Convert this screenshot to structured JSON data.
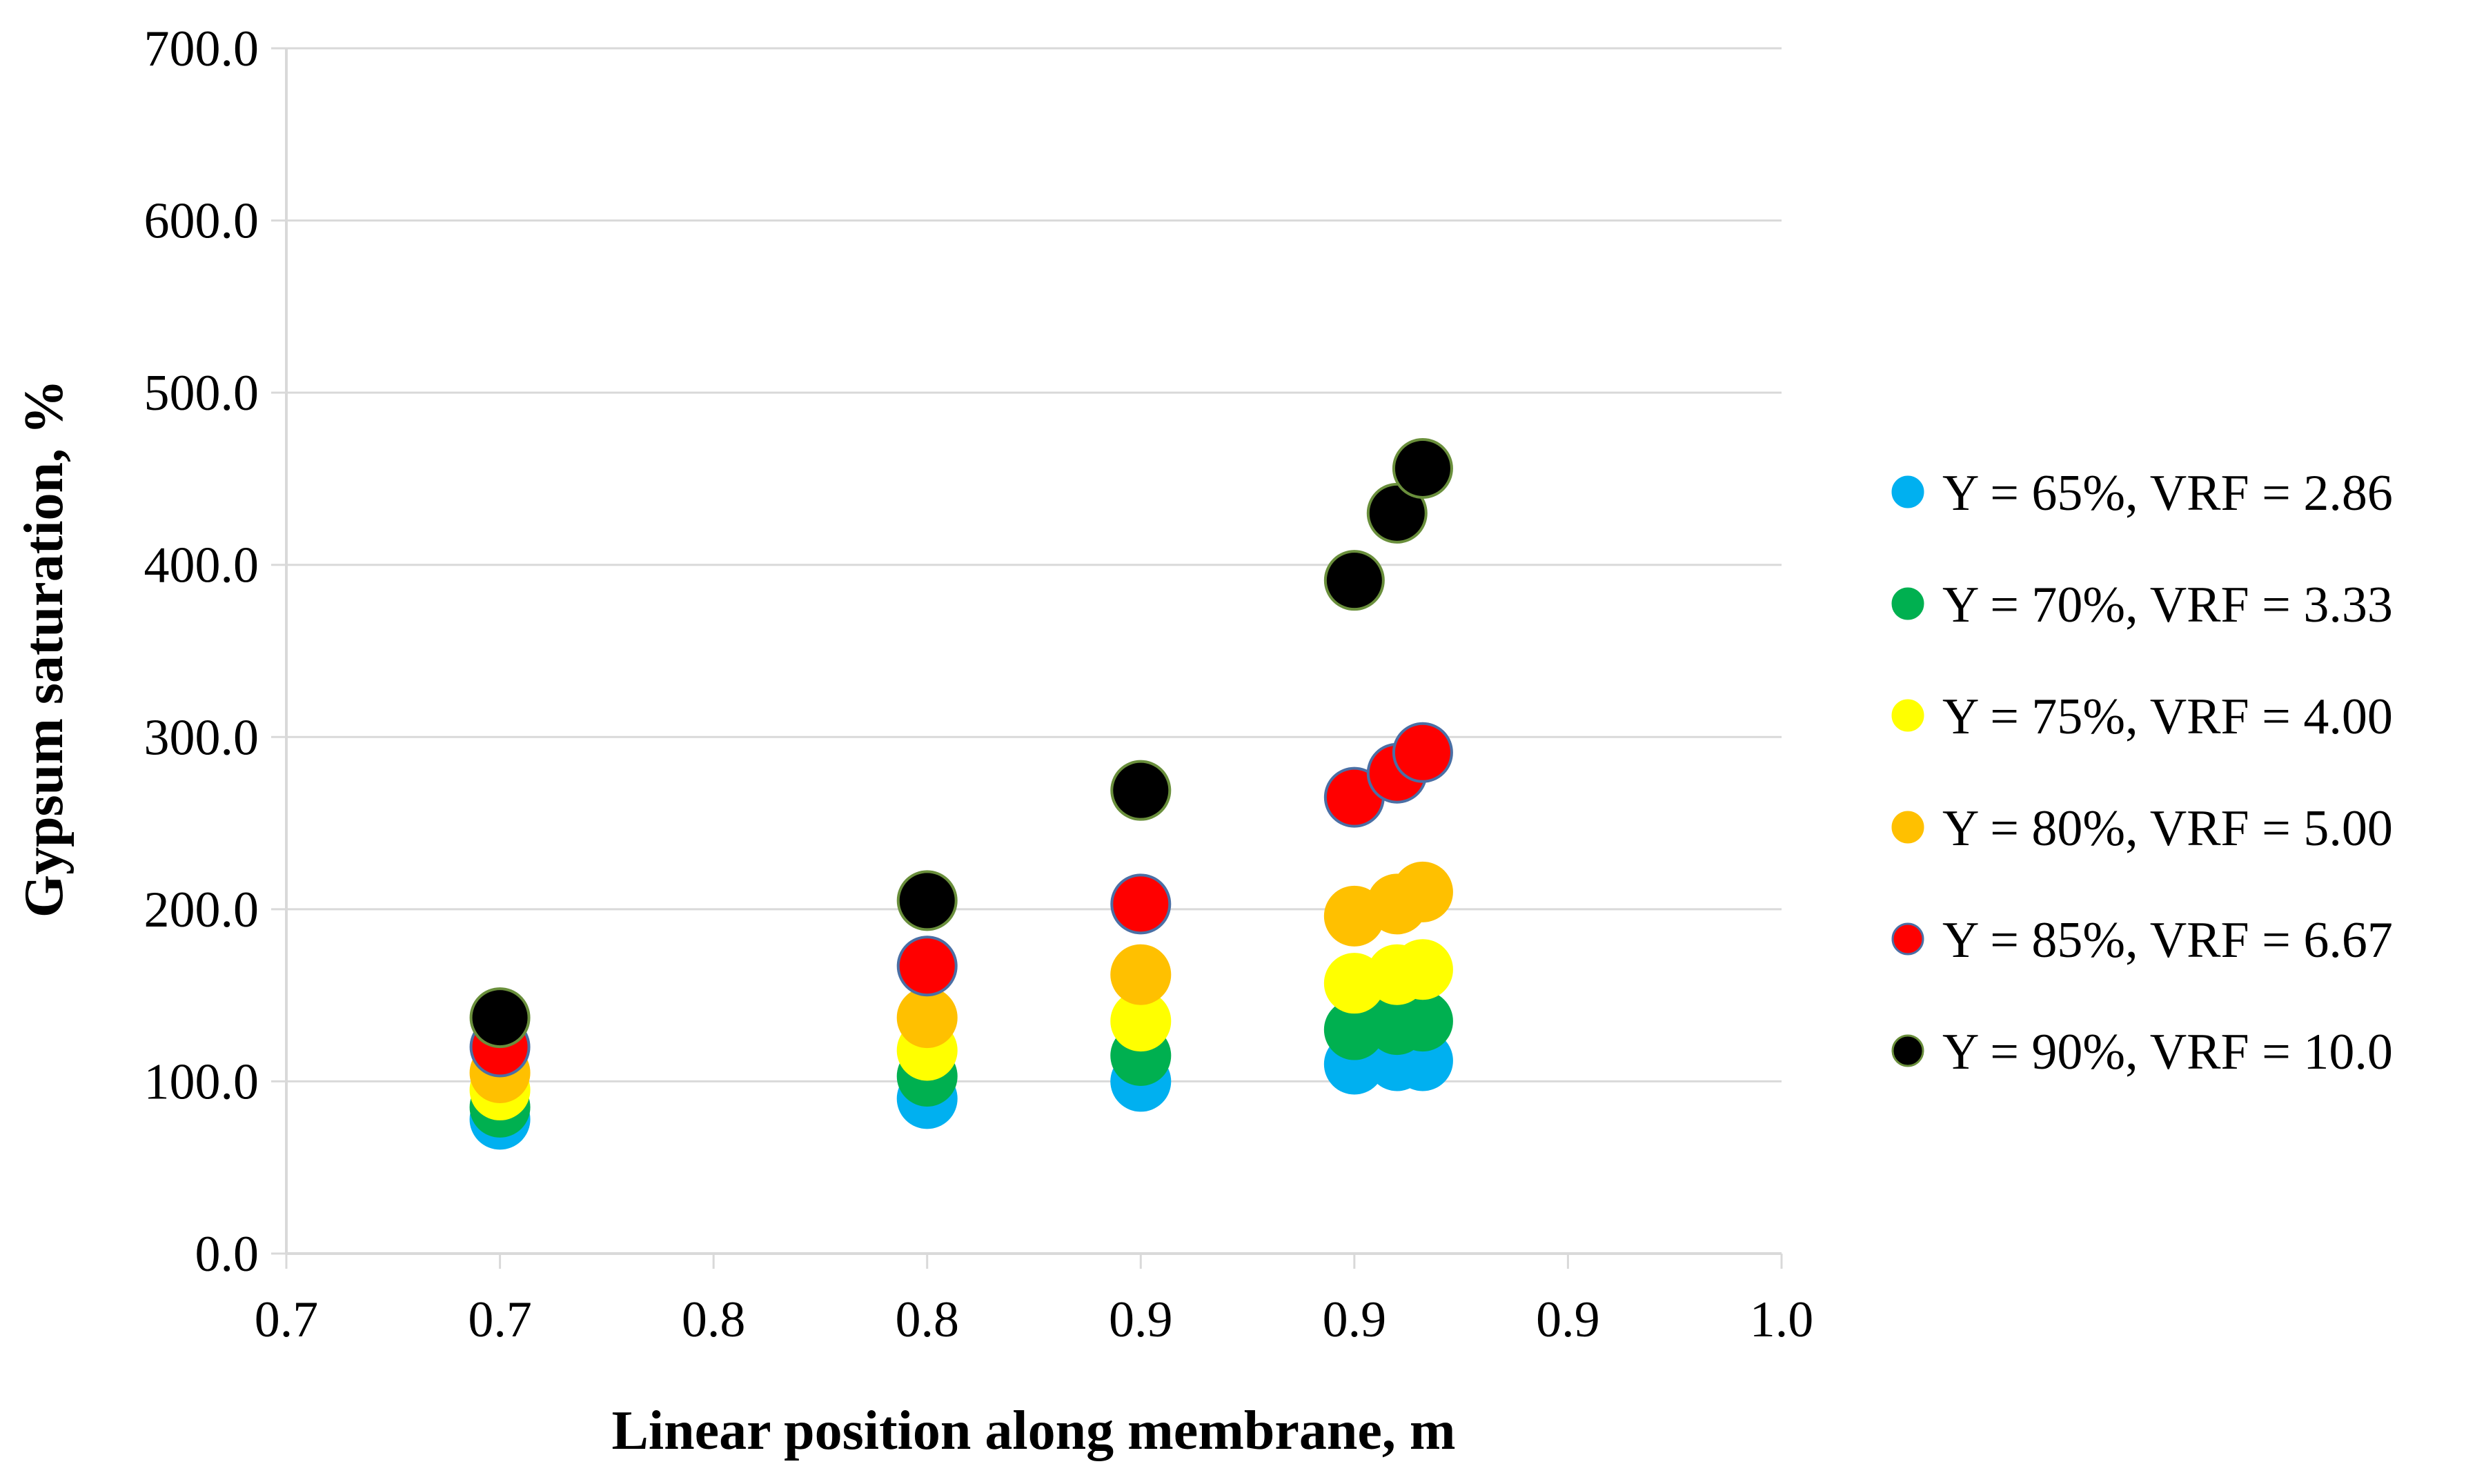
{
  "chart_data": {
    "type": "scatter",
    "title": "",
    "xlabel": "Linear position along membrane, m",
    "ylabel": "Gypsum saturation, %",
    "xlim": [
      0.65,
      1.0
    ],
    "ylim": [
      0,
      700
    ],
    "xticks": [
      0.65,
      0.7,
      0.75,
      0.8,
      0.85,
      0.9,
      0.95,
      1.0
    ],
    "xtick_labels": [
      "0.7",
      "0.7",
      "0.8",
      "0.8",
      "0.9",
      "0.9",
      "0.9",
      "1.0"
    ],
    "yticks": [
      0,
      100,
      200,
      300,
      400,
      500,
      600,
      700
    ],
    "ytick_labels": [
      "0.0",
      "100.0",
      "200.0",
      "300.0",
      "400.0",
      "500.0",
      "600.0",
      "700.0"
    ],
    "grid": "horizontal",
    "legend_position": "right",
    "series": [
      {
        "name": "Y = 65%, VRF = 2.86",
        "color": "#00b0f0",
        "x": [
          0.7,
          0.8,
          0.85,
          0.9,
          0.91,
          0.916
        ],
        "y": [
          78,
          90,
          100,
          110,
          112,
          112
        ]
      },
      {
        "name": "Y = 70%, VRF = 3.33",
        "color": "#00b050",
        "x": [
          0.7,
          0.8,
          0.85,
          0.9,
          0.91,
          0.916
        ],
        "y": [
          85,
          103,
          115,
          130,
          133,
          135
        ]
      },
      {
        "name": "Y = 75%, VRF = 4.00",
        "color": "#ffff00",
        "x": [
          0.7,
          0.8,
          0.85,
          0.9,
          0.91,
          0.916
        ],
        "y": [
          95,
          118,
          135,
          157,
          162,
          165
        ]
      },
      {
        "name": "Y = 80%, VRF = 5.00",
        "color": "#ffc000",
        "x": [
          0.7,
          0.8,
          0.85,
          0.9,
          0.91,
          0.916
        ],
        "y": [
          105,
          137,
          162,
          196,
          203,
          210
        ]
      },
      {
        "name": "Y = 85%, VRF = 6.67",
        "color": "#ff0000",
        "x": [
          0.7,
          0.8,
          0.85,
          0.9,
          0.91,
          0.916
        ],
        "y": [
          120,
          167,
          203,
          265,
          279,
          291
        ]
      },
      {
        "name": "Y = 90%, VRF = 10.0",
        "color": "#000000",
        "x": [
          0.7,
          0.8,
          0.85,
          0.9,
          0.91,
          0.916
        ],
        "y": [
          137,
          205,
          269,
          391,
          430,
          456
        ]
      }
    ]
  }
}
